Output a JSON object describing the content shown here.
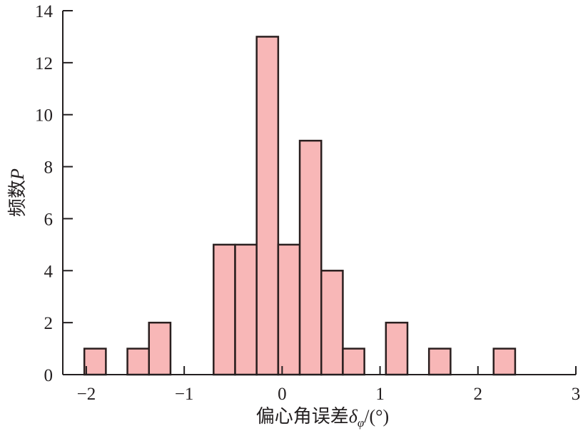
{
  "chart_data": {
    "type": "bar",
    "subtype": "histogram",
    "title": "",
    "xlabel": "偏心角误差δφ/(°)",
    "xlabel_parts": {
      "main": "偏心角误差",
      "symbol": "δ",
      "subscript": "φ",
      "unit": "/(°)"
    },
    "ylabel": "频数P",
    "ylabel_parts": {
      "main": "频数",
      "symbol": "P"
    },
    "xlim": [
      -2.24,
      3
    ],
    "ylim": [
      0,
      14
    ],
    "xticks": [
      -2,
      -1,
      0,
      1,
      2,
      3
    ],
    "xtick_labels": [
      "−2",
      "−1",
      "0",
      "1",
      "2",
      "3"
    ],
    "yticks": [
      0,
      2,
      4,
      6,
      8,
      10,
      12,
      14
    ],
    "ytick_labels": [
      "0",
      "2",
      "4",
      "6",
      "8",
      "10",
      "12",
      "14"
    ],
    "bin_start": -2.02,
    "bin_width": 0.22,
    "counts": [
      1,
      0,
      1,
      2,
      0,
      0,
      5,
      5,
      13,
      5,
      9,
      4,
      1,
      0,
      2,
      0,
      1,
      0,
      0,
      1
    ],
    "grid": false,
    "legend": "none",
    "colors": {
      "bar_fill": "#f8b7b7",
      "bar_edge": "#2a1f1f",
      "axis": "#231f20"
    }
  }
}
